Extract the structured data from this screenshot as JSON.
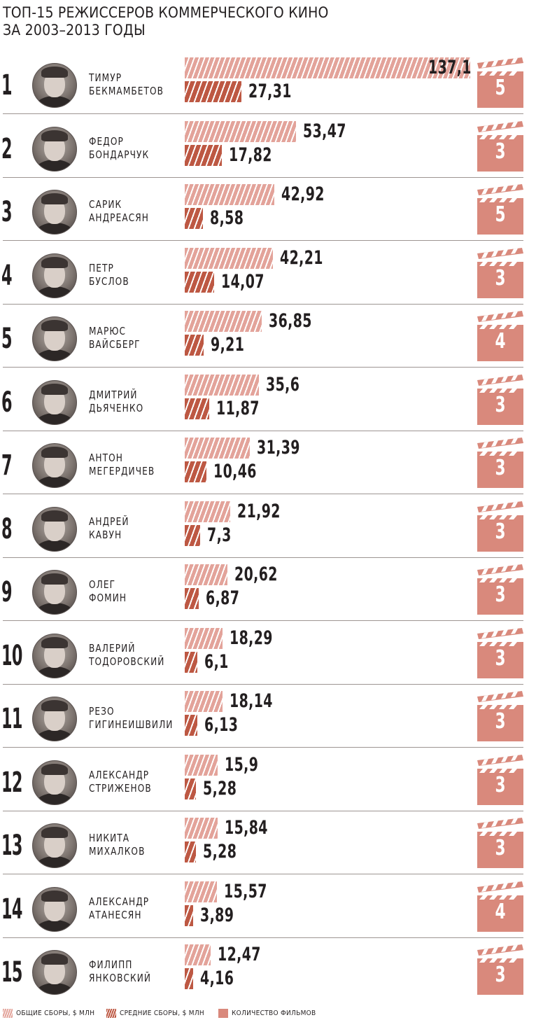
{
  "title_lines": [
    "ТОП-15 РЕЖИССЕРОВ КОММЕРЧЕСКОГО КИНО",
    "ЗА 2003–2013 ГОДЫ"
  ],
  "legend": {
    "total": "ОБЩИЕ СБОРЫ, $ МЛН",
    "avg": "СРЕДНИЕ СБОРЫ, $ МЛН",
    "count": "КОЛИЧЕСТВО ФИЛЬМОВ"
  },
  "colors": {
    "total_bar": "#e3a39a",
    "avg_bar": "#bd5843",
    "clapper": "#d9897c",
    "text": "#231f20"
  },
  "chart_data": {
    "type": "bar",
    "title": "ТОП-15 РЕЖИССЕРОВ КОММЕРЧЕСКОГО КИНО ЗА 2003–2013 ГОДЫ",
    "categories": [
      "ТИМУР БЕКМАМБЕТОВ",
      "ФЕДОР БОНДАРЧУК",
      "САРИК АНДРЕАСЯН",
      "ПЕТР БУСЛОВ",
      "МАРЮС ВАЙСБЕРГ",
      "ДМИТРИЙ ДЬЯЧЕНКО",
      "АНТОН МЕГЕРДИЧЕВ",
      "АНДРЕЙ КАВУН",
      "ОЛЕГ ФОМИН",
      "ВАЛЕРИЙ ТОДОРОВСКИЙ",
      "РЕЗО ГИГИНЕИШВИЛИ",
      "АЛЕКСАНДР СТРИЖЕНОВ",
      "НИКИТА МИХАЛКОВ",
      "АЛЕКСАНДР АТАНЕСЯН",
      "ФИЛИПП ЯНКОВСКИЙ"
    ],
    "series": [
      {
        "name": "ОБЩИЕ СБОРЫ, $ МЛН",
        "values": [
          137.1,
          53.47,
          42.92,
          42.21,
          36.85,
          35.6,
          31.39,
          21.92,
          20.62,
          18.29,
          18.14,
          15.9,
          15.84,
          15.57,
          12.47
        ]
      },
      {
        "name": "СРЕДНИЕ СБОРЫ, $ МЛН",
        "values": [
          27.31,
          17.82,
          8.58,
          14.07,
          9.21,
          11.87,
          10.46,
          7.3,
          6.87,
          6.1,
          6.13,
          5.28,
          5.28,
          3.89,
          4.16
        ]
      },
      {
        "name": "КОЛИЧЕСТВО ФИЛЬМОВ",
        "values": [
          5,
          3,
          5,
          3,
          4,
          3,
          3,
          3,
          3,
          3,
          3,
          3,
          3,
          4,
          3
        ]
      }
    ],
    "grid": false,
    "legend_position": "bottom"
  },
  "rows": [
    {
      "rank": "1",
      "first": "ТИМУР",
      "last": "БЕКМАМБЕТОВ",
      "total_label": "137,1",
      "avg_label": "27,31",
      "films": "5"
    },
    {
      "rank": "2",
      "first": "ФЕДОР",
      "last": "БОНДАРЧУК",
      "total_label": "53,47",
      "avg_label": "17,82",
      "films": "3"
    },
    {
      "rank": "3",
      "first": "САРИК",
      "last": "АНДРЕАСЯН",
      "total_label": "42,92",
      "avg_label": "8,58",
      "films": "5"
    },
    {
      "rank": "4",
      "first": "ПЕТР",
      "last": "БУСЛОВ",
      "total_label": "42,21",
      "avg_label": "14,07",
      "films": "3"
    },
    {
      "rank": "5",
      "first": "МАРЮС",
      "last": "ВАЙСБЕРГ",
      "total_label": "36,85",
      "avg_label": "9,21",
      "films": "4"
    },
    {
      "rank": "6",
      "first": "ДМИТРИЙ",
      "last": "ДЬЯЧЕНКО",
      "total_label": "35,6",
      "avg_label": "11,87",
      "films": "3"
    },
    {
      "rank": "7",
      "first": "АНТОН",
      "last": "МЕГЕРДИЧЕВ",
      "total_label": "31,39",
      "avg_label": "10,46",
      "films": "3"
    },
    {
      "rank": "8",
      "first": "АНДРЕЙ",
      "last": "КАВУН",
      "total_label": "21,92",
      "avg_label": "7,3",
      "films": "3"
    },
    {
      "rank": "9",
      "first": "ОЛЕГ",
      "last": "ФОМИН",
      "total_label": "20,62",
      "avg_label": "6,87",
      "films": "3"
    },
    {
      "rank": "10",
      "first": "ВАЛЕРИЙ",
      "last": "ТОДОРОВСКИЙ",
      "total_label": "18,29",
      "avg_label": "6,1",
      "films": "3"
    },
    {
      "rank": "11",
      "first": "РЕЗО",
      "last": "ГИГИНЕИШВИЛИ",
      "total_label": "18,14",
      "avg_label": "6,13",
      "films": "3"
    },
    {
      "rank": "12",
      "first": "АЛЕКСАНДР",
      "last": "СТРИЖЕНОВ",
      "total_label": "15,9",
      "avg_label": "5,28",
      "films": "3"
    },
    {
      "rank": "13",
      "first": "НИКИТА",
      "last": "МИХАЛКОВ",
      "total_label": "15,84",
      "avg_label": "5,28",
      "films": "3"
    },
    {
      "rank": "14",
      "first": "АЛЕКСАНДР",
      "last": "АТАНЕСЯН",
      "total_label": "15,57",
      "avg_label": "3,89",
      "films": "4"
    },
    {
      "rank": "15",
      "first": "ФИЛИПП",
      "last": "ЯНКОВСКИЙ",
      "total_label": "12,47",
      "avg_label": "4,16",
      "films": "3"
    }
  ]
}
